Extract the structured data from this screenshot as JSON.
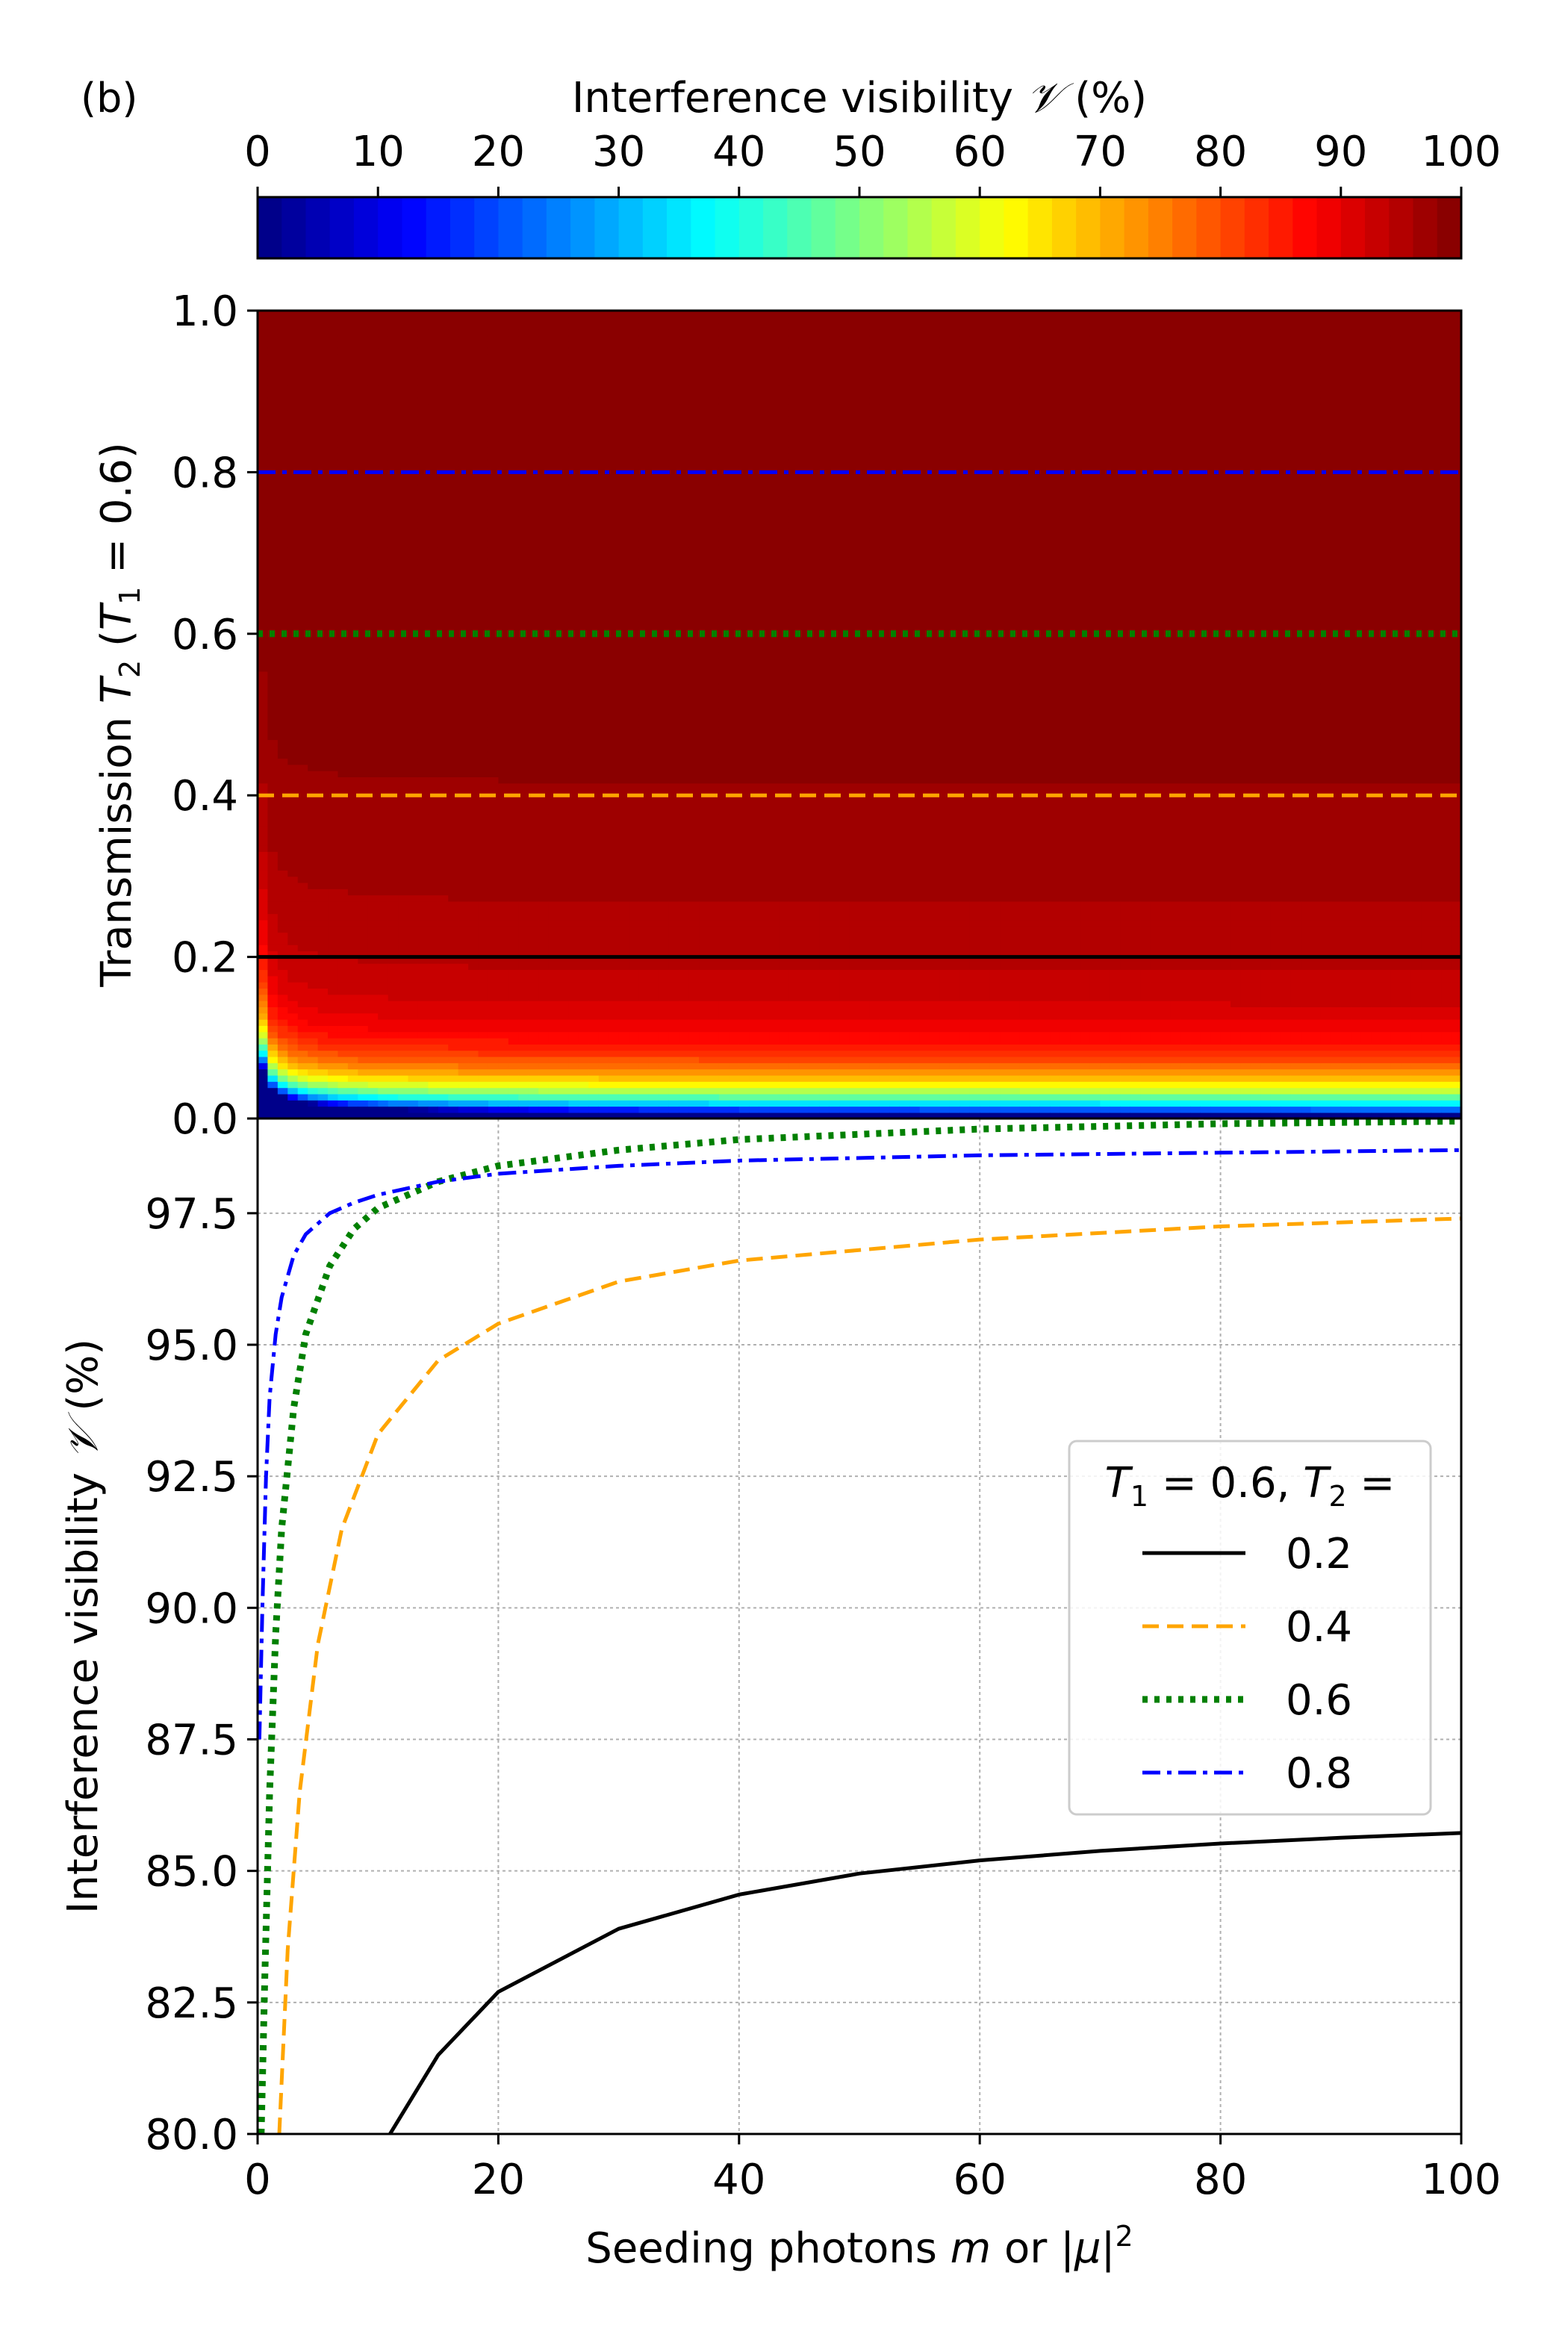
{
  "panel_label": "(b)",
  "chart_data": [
    {
      "type": "heatmap",
      "colorbar": {
        "label_prefix": "Interference visibility ",
        "label_symbol": "𝒱",
        "label_suffix": " (%)",
        "ticks": [
          0,
          10,
          20,
          30,
          40,
          50,
          60,
          70,
          80,
          90,
          100
        ],
        "range": [
          0,
          100
        ],
        "colormap": "jet",
        "levels": 50
      },
      "x": {
        "range": [
          0,
          100
        ]
      },
      "y": {
        "label_main": "Transmission ",
        "label_T": "T",
        "label_sub": "2",
        "label_rest": " (",
        "label_T1": "T",
        "label_sub1": "1",
        "label_end": " = 0.6)",
        "range": [
          0.0,
          1.0
        ],
        "ticks": [
          0.0,
          0.2,
          0.4,
          0.6,
          0.8,
          1.0
        ],
        "tick_labels": [
          "0.0",
          "0.2",
          "0.4",
          "0.6",
          "0.8",
          "1.0"
        ]
      },
      "reference_lines": [
        {
          "y": 0.2,
          "color": "#000000",
          "style": "solid"
        },
        {
          "y": 0.4,
          "color": "#ffa500",
          "style": "dashed"
        },
        {
          "y": 0.6,
          "color": "#008000",
          "style": "dotted"
        },
        {
          "y": 0.8,
          "color": "#0000ff",
          "style": "dashdot"
        }
      ]
    },
    {
      "type": "line",
      "x": {
        "label_main": "Seeding photons ",
        "label_m": "m",
        "label_or": " or |",
        "label_mu": "μ",
        "label_end": "|",
        "label_sup": "2",
        "range": [
          0,
          100
        ],
        "ticks": [
          0,
          20,
          40,
          60,
          80,
          100
        ]
      },
      "y": {
        "label_main": "Interference visibility ",
        "label_symbol": "𝒱",
        "label_suffix": " (%)",
        "range": [
          80.0,
          99.3
        ],
        "ticks": [
          80.0,
          82.5,
          85.0,
          87.5,
          90.0,
          92.5,
          95.0,
          97.5
        ],
        "tick_labels": [
          "80.0",
          "82.5",
          "85.0",
          "87.5",
          "90.0",
          "92.5",
          "95.0",
          "97.5"
        ]
      },
      "grid": true,
      "legend": {
        "placement": "center-right",
        "title_T1": "T",
        "title_sub1": "1",
        "title_mid": " = 0.6, ",
        "title_T2": "T",
        "title_sub2": "2",
        "title_end": " ="
      },
      "series": [
        {
          "name": "0.2",
          "T2": 0.2,
          "color": "#000000",
          "style": "solid",
          "points": [
            [
              11,
              80.0
            ],
            [
              15,
              81.5
            ],
            [
              20,
              82.7
            ],
            [
              30,
              83.9
            ],
            [
              40,
              84.55
            ],
            [
              50,
              84.95
            ],
            [
              60,
              85.2
            ],
            [
              70,
              85.38
            ],
            [
              80,
              85.52
            ],
            [
              90,
              85.63
            ],
            [
              100,
              85.72
            ]
          ]
        },
        {
          "name": "0.4",
          "T2": 0.4,
          "color": "#ffa500",
          "style": "dashed",
          "points": [
            [
              1.8,
              80.0
            ],
            [
              2.5,
              83.5
            ],
            [
              3.5,
              86.5
            ],
            [
              5,
              89.3
            ],
            [
              7,
              91.5
            ],
            [
              10,
              93.3
            ],
            [
              15,
              94.7
            ],
            [
              20,
              95.4
            ],
            [
              30,
              96.2
            ],
            [
              40,
              96.6
            ],
            [
              60,
              97.0
            ],
            [
              80,
              97.25
            ],
            [
              100,
              97.4
            ]
          ]
        },
        {
          "name": "0.6",
          "T2": 0.6,
          "color": "#008000",
          "style": "dotted",
          "points": [
            [
              0.3,
              80.0
            ],
            [
              0.6,
              83.0
            ],
            [
              1,
              86.5
            ],
            [
              1.5,
              89.5
            ],
            [
              2,
              91.5
            ],
            [
              3,
              93.8
            ],
            [
              4,
              95.2
            ],
            [
              6,
              96.5
            ],
            [
              8,
              97.2
            ],
            [
              10,
              97.6
            ],
            [
              15,
              98.1
            ],
            [
              20,
              98.4
            ],
            [
              30,
              98.7
            ],
            [
              40,
              98.9
            ],
            [
              60,
              99.1
            ],
            [
              80,
              99.2
            ],
            [
              100,
              99.25
            ]
          ]
        },
        {
          "name": "0.8",
          "T2": 0.8,
          "color": "#0000ff",
          "style": "dashdot",
          "points": [
            [
              0.15,
              87.5
            ],
            [
              0.4,
              90.0
            ],
            [
              0.7,
              92.5
            ],
            [
              1,
              94.0
            ],
            [
              1.5,
              95.2
            ],
            [
              2,
              95.9
            ],
            [
              3,
              96.7
            ],
            [
              4,
              97.1
            ],
            [
              6,
              97.5
            ],
            [
              8,
              97.7
            ],
            [
              10,
              97.85
            ],
            [
              15,
              98.1
            ],
            [
              20,
              98.25
            ],
            [
              30,
              98.4
            ],
            [
              40,
              98.5
            ],
            [
              60,
              98.6
            ],
            [
              80,
              98.65
            ],
            [
              100,
              98.7
            ]
          ]
        }
      ]
    }
  ]
}
